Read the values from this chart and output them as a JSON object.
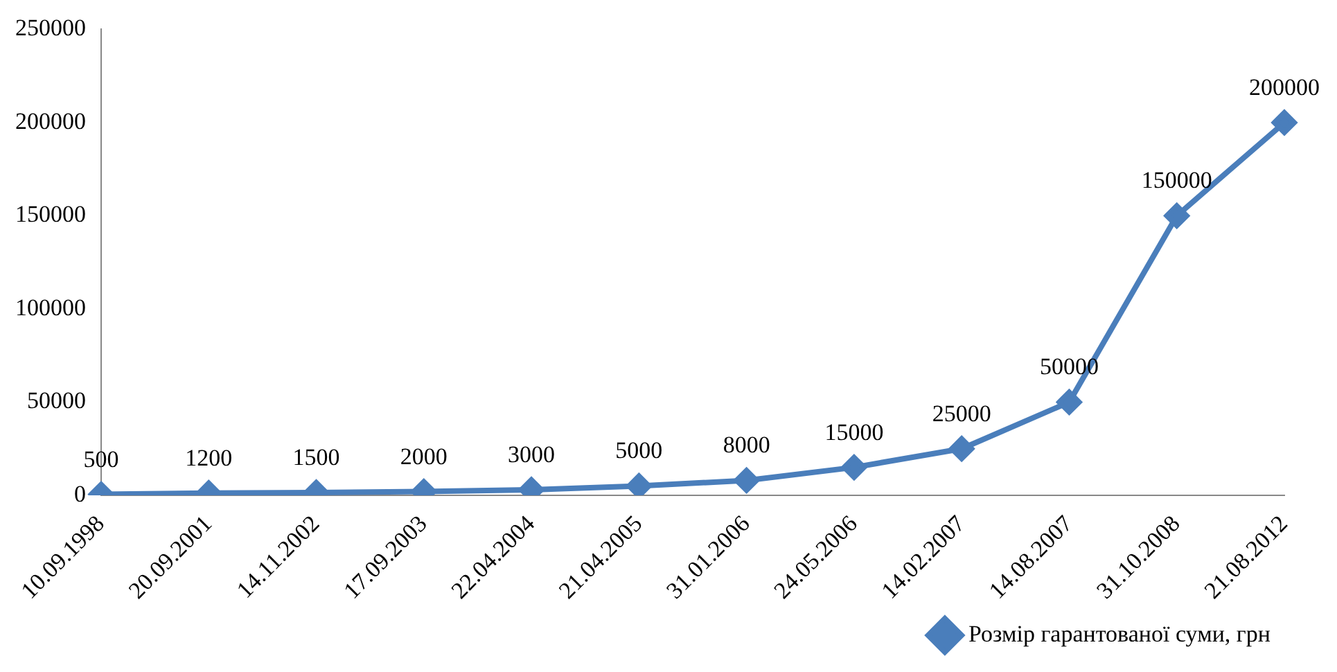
{
  "chart_data": {
    "type": "line",
    "categories": [
      "10.09.1998",
      "20.09.2001",
      "14.11.2002",
      "17.09.2003",
      "22.04.2004",
      "21.04.2005",
      "31.01.2006",
      "24.05.2006",
      "14.02.2007",
      "14.08.2007",
      "31.10.2008",
      "21.08.2012"
    ],
    "series": [
      {
        "name": "Розмір гарантованої суми, грн",
        "color": "#4a7ebb",
        "values": [
          500,
          1200,
          1500,
          2000,
          3000,
          5000,
          8000,
          15000,
          25000,
          50000,
          150000,
          200000
        ]
      }
    ],
    "ylim": [
      0,
      250000
    ],
    "yticks": [
      0,
      50000,
      100000,
      150000,
      200000,
      250000
    ],
    "grid": false,
    "legend": "bottom right",
    "marker": "diamond",
    "line_style": "solid",
    "data_labels": true
  }
}
